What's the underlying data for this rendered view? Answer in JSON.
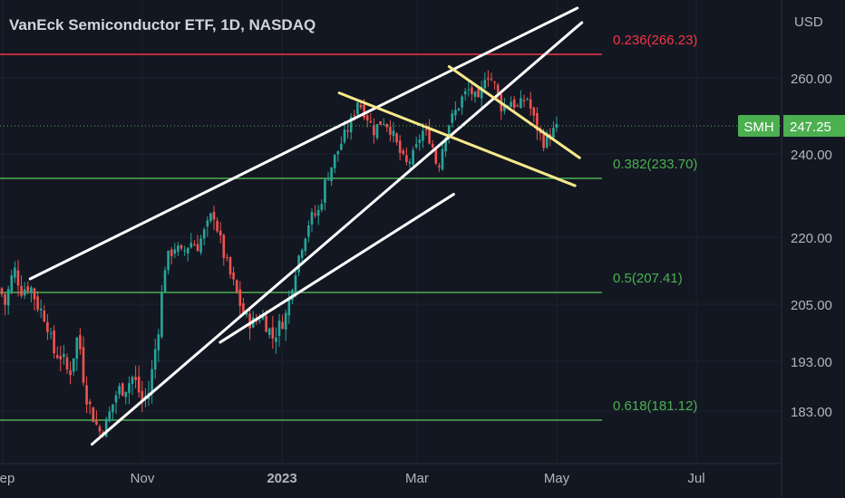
{
  "chart_data": {
    "type": "candlestick",
    "title": "VanEck Semiconductor ETF, 1D, NASDAQ",
    "currency": "USD",
    "symbol": "SMH",
    "last_price": "247.25",
    "y_ticks": [
      "260.00",
      "240.00",
      "220.00",
      "205.00",
      "193.00",
      "183.00"
    ],
    "y_tick_values": [
      260,
      240,
      220,
      205,
      193,
      183
    ],
    "x_ticks": [
      "Sep",
      "Nov",
      "2023",
      "Mar",
      "May",
      "Jul"
    ],
    "x_tick_dates": [
      "2022-09-01",
      "2022-11-01",
      "2023-01-01",
      "2023-03-01",
      "2023-05-01",
      "2023-07-01"
    ],
    "fib_levels": [
      {
        "label": "0.236(266.23)",
        "value": 266.23,
        "color": "#f23645"
      },
      {
        "label": "0.382(233.70)",
        "value": 233.7,
        "color": "#4caf50"
      },
      {
        "label": "0.5(207.41)",
        "value": 207.41,
        "color": "#4caf50"
      },
      {
        "label": "0.618(181.12)",
        "value": 181.12,
        "color": "#4caf50"
      }
    ],
    "trendlines": [
      {
        "color": "#ffffff",
        "points": [
          [
            "2022-09-13",
            210.5
          ],
          [
            "2023-05-10",
            279
          ]
        ]
      },
      {
        "color": "#ffffff",
        "points": [
          [
            "2022-10-10",
            174
          ],
          [
            "2023-05-12",
            275
          ]
        ]
      },
      {
        "color": "#ffffff",
        "points": [
          [
            "2022-12-05",
            197
          ],
          [
            "2023-03-17",
            230
          ]
        ]
      },
      {
        "color": "#f5e98a",
        "points": [
          [
            "2023-01-26",
            256
          ],
          [
            "2023-05-09",
            232
          ]
        ]
      },
      {
        "color": "#f5e98a",
        "points": [
          [
            "2023-03-15",
            263
          ],
          [
            "2023-05-11",
            239
          ]
        ]
      }
    ],
    "price_series": [
      [
        "2022-08-29",
        211
      ],
      [
        "2022-09-02",
        205
      ],
      [
        "2022-09-06",
        213
      ],
      [
        "2022-09-09",
        208
      ],
      [
        "2022-09-13",
        209
      ],
      [
        "2022-09-16",
        205
      ],
      [
        "2022-09-20",
        202
      ],
      [
        "2022-09-23",
        195
      ],
      [
        "2022-09-27",
        194
      ],
      [
        "2022-09-30",
        190
      ],
      [
        "2022-10-04",
        199
      ],
      [
        "2022-10-07",
        187
      ],
      [
        "2022-10-11",
        181
      ],
      [
        "2022-10-14",
        177
      ],
      [
        "2022-10-18",
        183
      ],
      [
        "2022-10-21",
        187
      ],
      [
        "2022-10-25",
        188
      ],
      [
        "2022-10-28",
        190
      ],
      [
        "2022-11-01",
        185
      ],
      [
        "2022-11-04",
        187
      ],
      [
        "2022-11-08",
        200
      ],
      [
        "2022-11-11",
        214
      ],
      [
        "2022-11-15",
        218
      ],
      [
        "2022-11-18",
        216
      ],
      [
        "2022-11-22",
        219
      ],
      [
        "2022-11-25",
        218
      ],
      [
        "2022-11-29",
        222
      ],
      [
        "2022-12-02",
        226
      ],
      [
        "2022-12-06",
        217
      ],
      [
        "2022-12-09",
        212
      ],
      [
        "2022-12-13",
        206
      ],
      [
        "2022-12-16",
        202
      ],
      [
        "2022-12-20",
        201
      ],
      [
        "2022-12-23",
        203
      ],
      [
        "2022-12-28",
        198
      ],
      [
        "2023-01-03",
        203
      ],
      [
        "2023-01-06",
        211
      ],
      [
        "2023-01-10",
        219
      ],
      [
        "2023-01-13",
        224
      ],
      [
        "2023-01-17",
        226
      ],
      [
        "2023-01-20",
        233
      ],
      [
        "2023-01-24",
        239
      ],
      [
        "2023-01-27",
        243
      ],
      [
        "2023-01-31",
        248
      ],
      [
        "2023-02-03",
        254
      ],
      [
        "2023-02-07",
        250
      ],
      [
        "2023-02-10",
        246
      ],
      [
        "2023-02-14",
        249
      ],
      [
        "2023-02-17",
        247
      ],
      [
        "2023-02-21",
        241
      ],
      [
        "2023-02-24",
        237
      ],
      [
        "2023-02-28",
        240
      ],
      [
        "2023-03-03",
        246
      ],
      [
        "2023-03-07",
        244
      ],
      [
        "2023-03-10",
        236
      ],
      [
        "2023-03-14",
        247
      ],
      [
        "2023-03-17",
        250
      ],
      [
        "2023-03-21",
        255
      ],
      [
        "2023-03-24",
        257
      ],
      [
        "2023-03-28",
        253
      ],
      [
        "2023-03-31",
        262
      ],
      [
        "2023-04-04",
        258
      ],
      [
        "2023-04-07",
        252
      ],
      [
        "2023-04-11",
        254
      ],
      [
        "2023-04-14",
        252
      ],
      [
        "2023-04-18",
        255
      ],
      [
        "2023-04-21",
        249
      ],
      [
        "2023-04-25",
        243
      ],
      [
        "2023-04-28",
        245
      ],
      [
        "2023-05-02",
        247
      ]
    ]
  }
}
